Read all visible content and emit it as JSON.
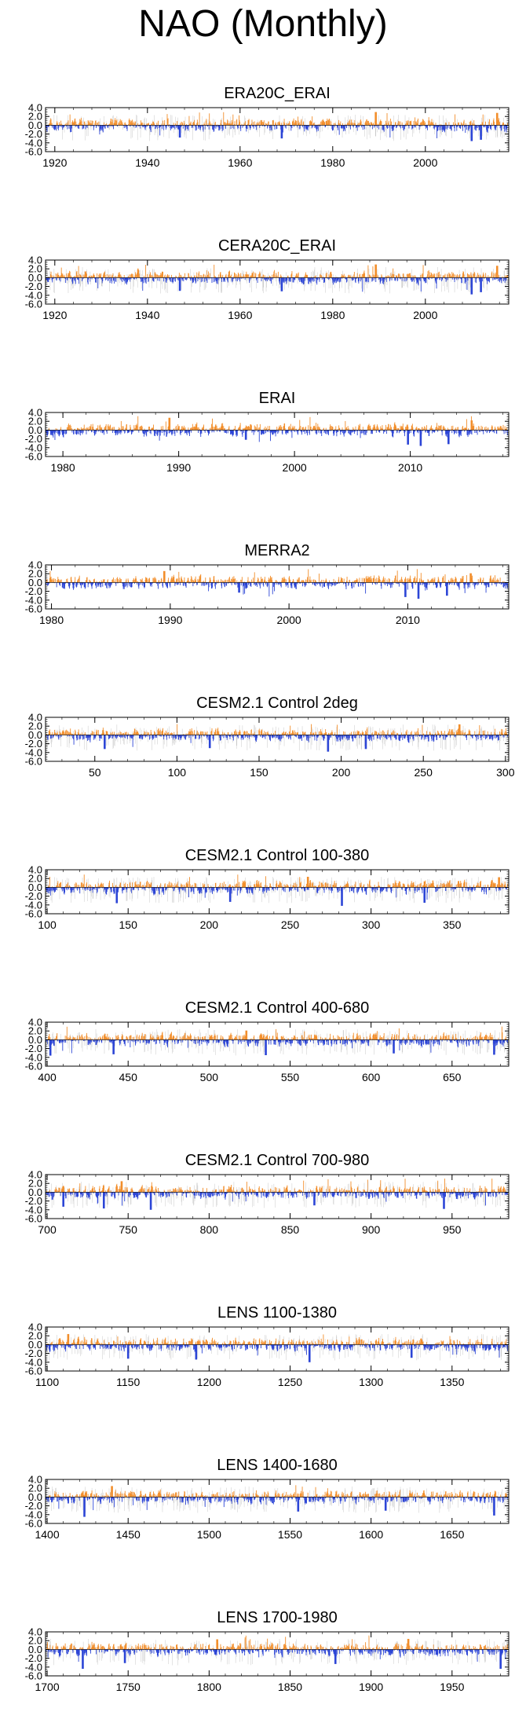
{
  "page": {
    "title": "NAO (Monthly)"
  },
  "colors": {
    "positive": "#F28E2B",
    "negative": "#2C45D6",
    "ensemble": "#C8C8C8",
    "axis": "#000000"
  },
  "chart_data": [
    {
      "type": "bar",
      "title": "ERA20C_ERAI",
      "xlim": [
        1918,
        2018
      ],
      "ylim": [
        -6.0,
        4.0
      ],
      "yticks": [
        "4.0",
        "2.0",
        "0.0",
        "-2.0",
        "-4.0",
        "-6.0"
      ],
      "xticks": [
        1920,
        1940,
        1960,
        1980,
        2000
      ],
      "ensemble_spread": true,
      "seed": 11,
      "extremes": [
        {
          "x": 1947.0,
          "y": -2.8
        },
        {
          "x": 1969.0,
          "y": -3.0
        },
        {
          "x": 1989.3,
          "y": 3.0
        },
        {
          "x": 2010.0,
          "y": -3.6
        },
        {
          "x": 2012.0,
          "y": -3.3
        },
        {
          "x": 2015.5,
          "y": 2.8
        }
      ]
    },
    {
      "type": "bar",
      "title": "CERA20C_ERAI",
      "xlim": [
        1918,
        2018
      ],
      "ylim": [
        -6.0,
        4.0
      ],
      "yticks": [
        "4.0",
        "2.0",
        "0.0",
        "-2.0",
        "-4.0",
        "-6.0"
      ],
      "xticks": [
        1920,
        1940,
        1960,
        1980,
        2000
      ],
      "ensemble_spread": true,
      "seed": 23,
      "extremes": [
        {
          "x": 1947.0,
          "y": -3.0
        },
        {
          "x": 1969.0,
          "y": -3.1
        },
        {
          "x": 1989.3,
          "y": 3.0
        },
        {
          "x": 2010.0,
          "y": -3.8
        },
        {
          "x": 2012.0,
          "y": -3.3
        },
        {
          "x": 2015.5,
          "y": 2.7
        }
      ]
    },
    {
      "type": "bar",
      "title": "ERAI",
      "xlim": [
        1978.5,
        2018.5
      ],
      "ylim": [
        -6.0,
        4.0
      ],
      "yticks": [
        "4.0",
        "2.0",
        "0.0",
        "-2.0",
        "-4.0",
        "-6.0"
      ],
      "xticks": [
        1980,
        1990,
        2000,
        2010
      ],
      "ensemble_spread": false,
      "seed": 37,
      "extremes": [
        {
          "x": 1989.2,
          "y": 2.8
        },
        {
          "x": 1995.8,
          "y": -2.2
        },
        {
          "x": 2009.8,
          "y": -3.3
        },
        {
          "x": 2010.9,
          "y": -3.6
        },
        {
          "x": 2013.3,
          "y": -3.2
        },
        {
          "x": 2015.3,
          "y": 2.2
        }
      ]
    },
    {
      "type": "bar",
      "title": "MERRA2",
      "xlim": [
        1979.5,
        2018.5
      ],
      "ylim": [
        -6.0,
        4.0
      ],
      "yticks": [
        "4.0",
        "2.0",
        "0.0",
        "-2.0",
        "-4.0",
        "-6.0"
      ],
      "xticks": [
        1980,
        1990,
        2000,
        2010
      ],
      "ensemble_spread": false,
      "seed": 41,
      "extremes": [
        {
          "x": 1989.5,
          "y": 2.6
        },
        {
          "x": 1995.8,
          "y": -2.3
        },
        {
          "x": 2009.8,
          "y": -3.3
        },
        {
          "x": 2010.9,
          "y": -3.7
        },
        {
          "x": 2013.3,
          "y": -3.0
        },
        {
          "x": 2015.3,
          "y": 2.1
        }
      ]
    },
    {
      "type": "bar",
      "title": "CESM2.1 Control 2deg",
      "xlim": [
        20,
        302
      ],
      "ylim": [
        -6.0,
        4.0
      ],
      "yticks": [
        "4.0",
        "2.0",
        "0.0",
        "-2.0",
        "-4.0",
        "-6.0"
      ],
      "xticks": [
        50,
        100,
        150,
        200,
        250,
        300
      ],
      "ensemble_spread": true,
      "seed": 53,
      "extremes": [
        {
          "x": 56,
          "y": -3.2
        },
        {
          "x": 120,
          "y": -3.0
        },
        {
          "x": 192,
          "y": -3.8
        },
        {
          "x": 215,
          "y": -3.2
        },
        {
          "x": 272,
          "y": 2.4
        }
      ]
    },
    {
      "type": "bar",
      "title": "CESM2.1 Control 100-380",
      "xlim": [
        99,
        385
      ],
      "ylim": [
        -6.0,
        4.0
      ],
      "yticks": [
        "4.0",
        "2.0",
        "0.0",
        "-2.0",
        "-4.0",
        "-6.0"
      ],
      "xticks": [
        100,
        150,
        200,
        250,
        300,
        350
      ],
      "ensemble_spread": true,
      "seed": 67,
      "extremes": [
        {
          "x": 143,
          "y": -3.6
        },
        {
          "x": 213,
          "y": -3.3
        },
        {
          "x": 261,
          "y": 2.4
        },
        {
          "x": 282,
          "y": -4.2
        },
        {
          "x": 333,
          "y": -3.5
        },
        {
          "x": 379,
          "y": 2.3
        }
      ]
    },
    {
      "type": "bar",
      "title": "CESM2.1 Control 400-680",
      "xlim": [
        399,
        685
      ],
      "ylim": [
        -6.0,
        4.0
      ],
      "yticks": [
        "4.0",
        "2.0",
        "0.0",
        "-2.0",
        "-4.0",
        "-6.0"
      ],
      "xticks": [
        400,
        450,
        500,
        550,
        600,
        650
      ],
      "ensemble_spread": true,
      "seed": 79,
      "extremes": [
        {
          "x": 402,
          "y": -3.6
        },
        {
          "x": 441,
          "y": -3.3
        },
        {
          "x": 523,
          "y": 2.1
        },
        {
          "x": 535,
          "y": -3.5
        },
        {
          "x": 614,
          "y": -3.1
        },
        {
          "x": 676,
          "y": -3.4
        }
      ]
    },
    {
      "type": "bar",
      "title": "CESM2.1 Control 700-980",
      "xlim": [
        699,
        985
      ],
      "ylim": [
        -6.0,
        4.0
      ],
      "yticks": [
        "4.0",
        "2.0",
        "0.0",
        "-2.0",
        "-4.0",
        "-6.0"
      ],
      "xticks": [
        700,
        750,
        800,
        850,
        900,
        950
      ],
      "ensemble_spread": true,
      "seed": 83,
      "extremes": [
        {
          "x": 710,
          "y": -3.3
        },
        {
          "x": 735,
          "y": -3.7
        },
        {
          "x": 746,
          "y": 2.5
        },
        {
          "x": 764,
          "y": -4.0
        },
        {
          "x": 865,
          "y": -3.0
        },
        {
          "x": 945,
          "y": -3.8
        }
      ]
    },
    {
      "type": "bar",
      "title": "LENS 1100-1380",
      "xlim": [
        1099,
        1385
      ],
      "ylim": [
        -6.0,
        4.0
      ],
      "yticks": [
        "4.0",
        "2.0",
        "0.0",
        "-2.0",
        "-4.0",
        "-6.0"
      ],
      "xticks": [
        1100,
        1150,
        1200,
        1250,
        1300,
        1350
      ],
      "ensemble_spread": true,
      "seed": 97,
      "extremes": [
        {
          "x": 1113,
          "y": 2.4
        },
        {
          "x": 1150,
          "y": -3.2
        },
        {
          "x": 1192,
          "y": -3.4
        },
        {
          "x": 1262,
          "y": -4.0
        },
        {
          "x": 1325,
          "y": -3.0
        }
      ]
    },
    {
      "type": "bar",
      "title": "LENS 1400-1680",
      "xlim": [
        1399,
        1685
      ],
      "ylim": [
        -6.0,
        4.0
      ],
      "yticks": [
        "4.0",
        "2.0",
        "0.0",
        "-2.0",
        "-4.0",
        "-6.0"
      ],
      "xticks": [
        1400,
        1450,
        1500,
        1550,
        1600,
        1650
      ],
      "ensemble_spread": true,
      "seed": 101,
      "extremes": [
        {
          "x": 1423,
          "y": -4.5
        },
        {
          "x": 1440,
          "y": 2.5
        },
        {
          "x": 1555,
          "y": -3.3
        },
        {
          "x": 1609,
          "y": -3.1
        },
        {
          "x": 1676,
          "y": -4.2
        }
      ]
    },
    {
      "type": "bar",
      "title": "LENS 1700-1980",
      "xlim": [
        1699,
        1985
      ],
      "ylim": [
        -6.0,
        4.0
      ],
      "yticks": [
        "4.0",
        "2.0",
        "0.0",
        "-2.0",
        "-4.0",
        "-6.0"
      ],
      "xticks": [
        1700,
        1750,
        1800,
        1850,
        1900,
        1950
      ],
      "ensemble_spread": true,
      "seed": 113,
      "extremes": [
        {
          "x": 1722,
          "y": -4.4
        },
        {
          "x": 1748,
          "y": -3.1
        },
        {
          "x": 1805,
          "y": 2.3
        },
        {
          "x": 1878,
          "y": -3.3
        },
        {
          "x": 1923,
          "y": 2.4
        },
        {
          "x": 1980,
          "y": -4.4
        }
      ]
    }
  ]
}
